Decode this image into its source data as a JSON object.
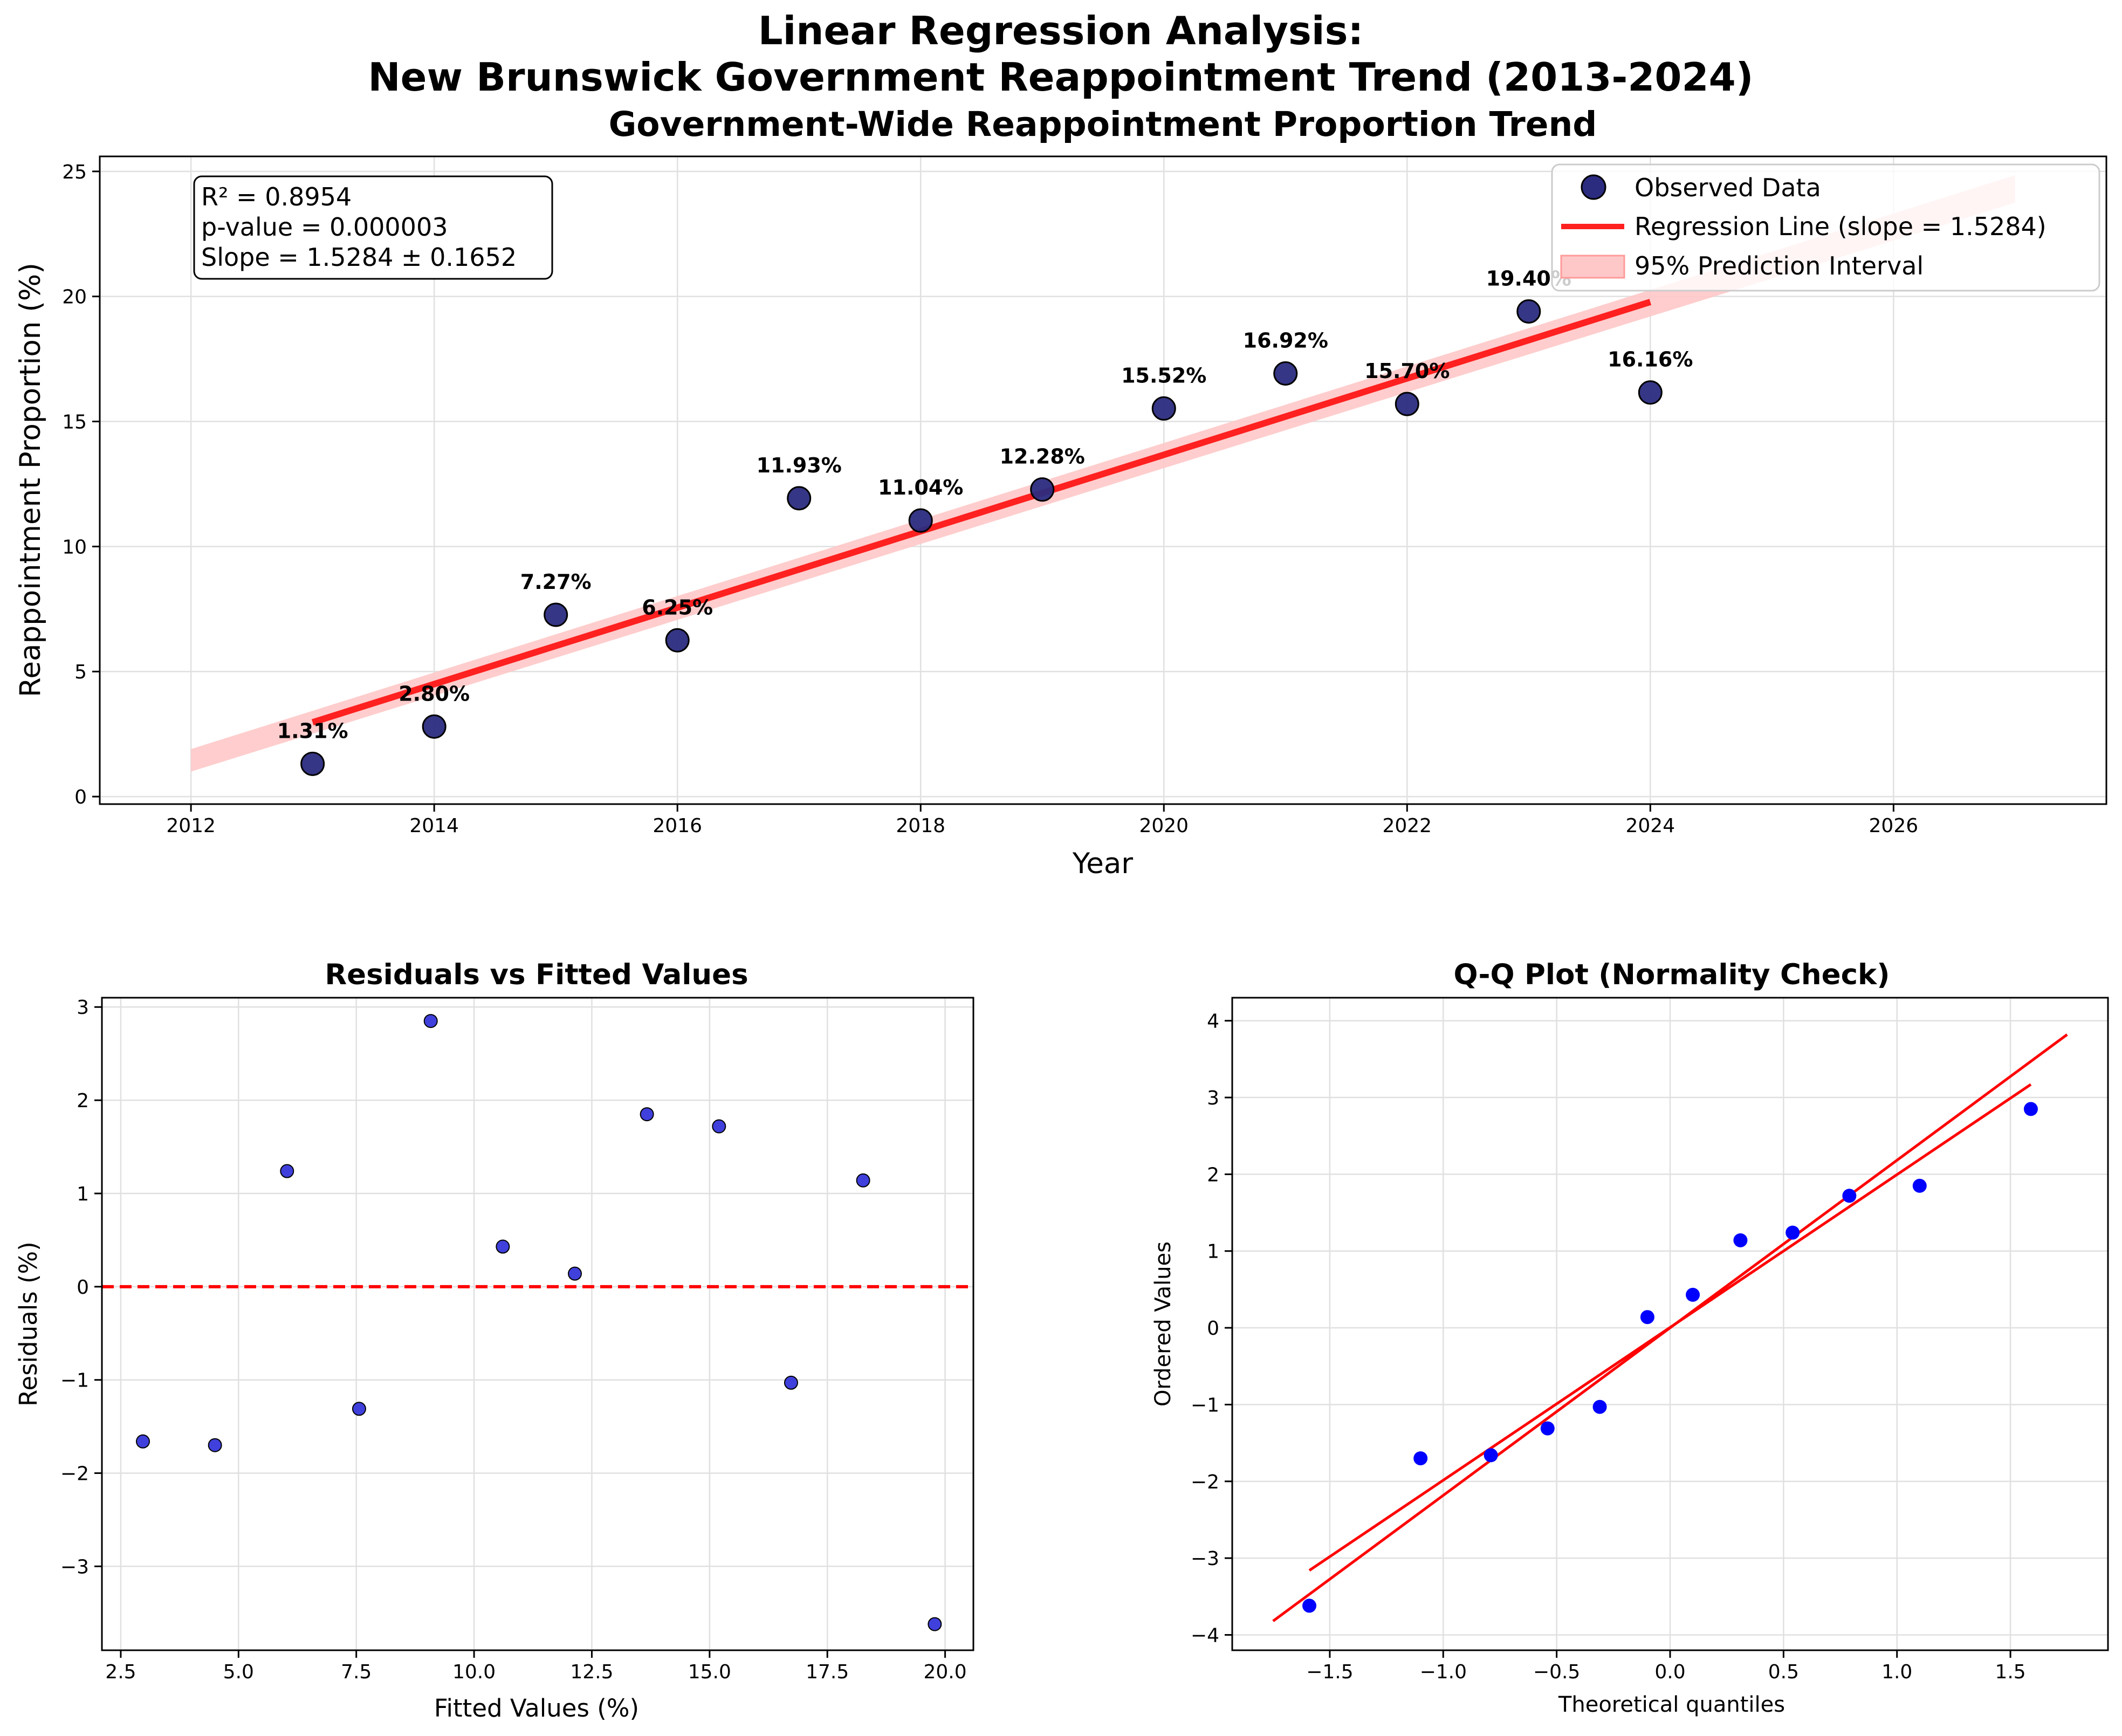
{
  "figure": {
    "suptitle_line1": "Linear Regression Analysis:",
    "suptitle_line2": "New Brunswick Government Reappointment Trend (2013-2024)"
  },
  "chart_data": [
    {
      "id": "trend",
      "type": "scatter",
      "title": "Government-Wide Reappointment Proportion Trend",
      "xlabel": "Year",
      "ylabel": "Reappointment Proportion (%)",
      "xlim": [
        2011.25,
        2027.75
      ],
      "ylim": [
        -0.3,
        25.6
      ],
      "xticks": [
        2012,
        2014,
        2016,
        2018,
        2020,
        2022,
        2024,
        2026
      ],
      "yticks": [
        0,
        5,
        10,
        15,
        20,
        25
      ],
      "grid": true,
      "legend_position": "top-right",
      "series": [
        {
          "name": "Observed Data",
          "kind": "scatter",
          "color": "#2b2b7f",
          "x": [
            2013,
            2014,
            2015,
            2016,
            2017,
            2018,
            2019,
            2020,
            2021,
            2022,
            2023,
            2024
          ],
          "y": [
            1.31,
            2.8,
            7.27,
            6.25,
            11.93,
            11.04,
            12.28,
            15.52,
            16.92,
            15.7,
            19.4,
            16.16
          ],
          "labels": [
            "1.31%",
            "2.80%",
            "7.27%",
            "6.25%",
            "11.93%",
            "11.04%",
            "12.28%",
            "15.52%",
            "16.92%",
            "15.70%",
            "19.40%",
            "16.16%"
          ]
        },
        {
          "name": "Regression Line (slope = 1.5284)",
          "kind": "line",
          "color": "#ff2020",
          "x": [
            2013,
            2024
          ],
          "y": [
            2.97,
            19.78
          ]
        },
        {
          "name": "95% Prediction Interval",
          "kind": "band",
          "color": "#ffc8c8",
          "x": [
            2012,
            2027
          ],
          "lower": [
            1.0,
            23.75
          ],
          "upper": [
            1.9,
            24.85
          ]
        }
      ],
      "stats_box": {
        "r2": "R² = 0.8954",
        "pvalue": "p-value = 0.000003",
        "slope": "Slope = 1.5284 ± 0.1652"
      }
    },
    {
      "id": "residuals",
      "type": "scatter",
      "title": "Residuals vs Fitted Values",
      "xlabel": "Fitted Values (%)",
      "ylabel": "Residuals (%)",
      "xlim": [
        2.1,
        20.6
      ],
      "ylim": [
        -3.9,
        3.1
      ],
      "xticks": [
        2.5,
        5.0,
        7.5,
        10.0,
        12.5,
        15.0,
        17.5,
        20.0
      ],
      "xtick_labels": [
        "2.5",
        "5.0",
        "7.5",
        "10.0",
        "12.5",
        "15.0",
        "17.5",
        "20.0"
      ],
      "yticks": [
        -3,
        -2,
        -1,
        0,
        1,
        2,
        3
      ],
      "ytick_labels": [
        "−3",
        "−2",
        "−1",
        "0",
        "1",
        "2",
        "3"
      ],
      "grid": true,
      "reference_line": {
        "y": 0,
        "color": "#ff0000",
        "style": "dashed"
      },
      "points": {
        "color": "#2b2bd8",
        "x": [
          2.97,
          4.5,
          6.03,
          7.56,
          9.08,
          10.61,
          12.14,
          13.67,
          15.2,
          16.73,
          18.26,
          19.78
        ],
        "y": [
          -1.66,
          -1.7,
          1.24,
          -1.31,
          2.85,
          0.43,
          0.14,
          1.85,
          1.72,
          -1.03,
          1.14,
          -3.62
        ]
      }
    },
    {
      "id": "qq",
      "type": "scatter",
      "title": "Q-Q Plot (Normality Check)",
      "xlabel": "Theoretical quantiles",
      "ylabel": "Ordered Values",
      "xlim": [
        -1.93,
        1.93
      ],
      "ylim": [
        -4.2,
        4.3
      ],
      "xticks": [
        -1.5,
        -1.0,
        -0.5,
        0.0,
        0.5,
        1.0,
        1.5
      ],
      "xtick_labels": [
        "−1.5",
        "−1.0",
        "−0.5",
        "0.0",
        "0.5",
        "1.0",
        "1.5"
      ],
      "yticks": [
        -4,
        -3,
        -2,
        -1,
        0,
        1,
        2,
        3,
        4
      ],
      "ytick_labels": [
        "−4",
        "−3",
        "−2",
        "−1",
        "0",
        "1",
        "2",
        "3",
        "4"
      ],
      "grid": true,
      "points": {
        "color": "#0000ff",
        "x": [
          -1.59,
          -1.1,
          -0.79,
          -0.54,
          -0.31,
          -0.1,
          0.1,
          0.31,
          0.54,
          0.79,
          1.1,
          1.59
        ],
        "y": [
          -3.62,
          -1.7,
          -1.66,
          -1.31,
          -1.03,
          0.14,
          0.43,
          1.14,
          1.24,
          1.72,
          1.85,
          2.85
        ]
      },
      "lines": [
        {
          "color": "#ff0000",
          "x": [
            -1.75,
            1.75
          ],
          "y": [
            -3.82,
            3.82
          ]
        },
        {
          "color": "#ff0000",
          "x": [
            -1.59,
            1.59
          ],
          "y": [
            -3.16,
            3.17
          ]
        }
      ]
    }
  ]
}
